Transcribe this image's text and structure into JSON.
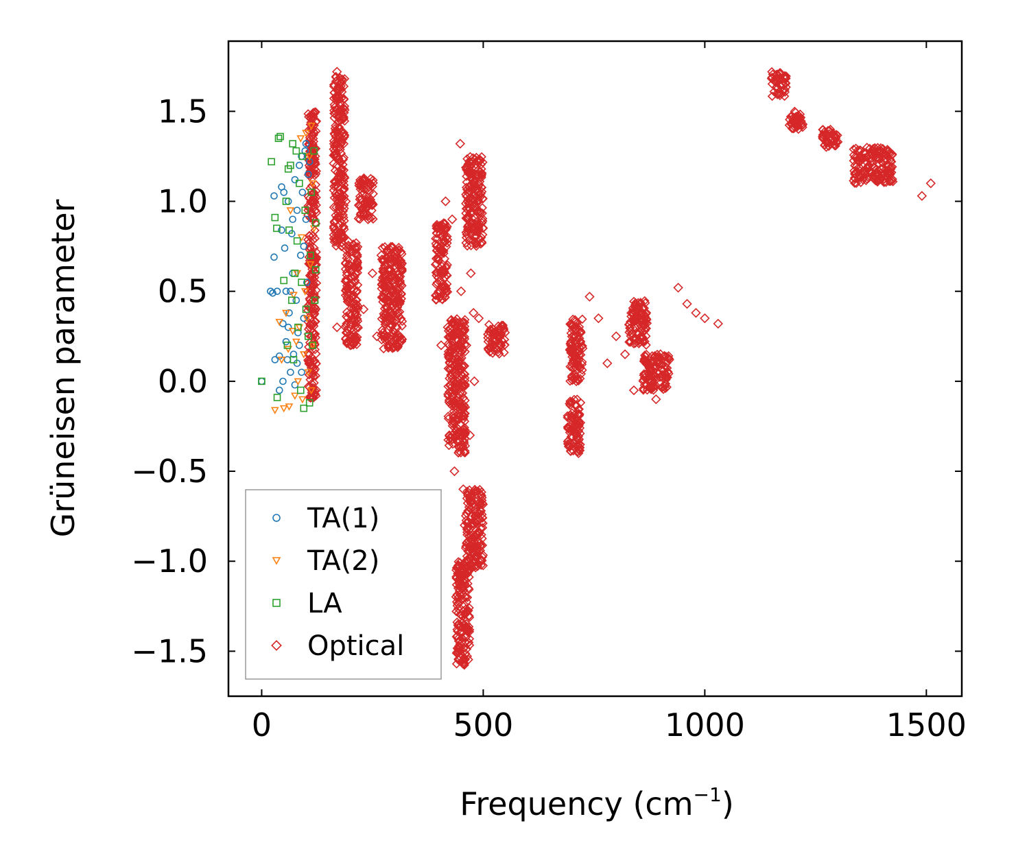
{
  "chart_data": {
    "type": "scatter",
    "title": "",
    "xlabel": "Frequency (cm",
    "xlabel_sup": "−1",
    "xlabel_close": ")",
    "ylabel": "Grüneisen parameter",
    "xlim": [
      -75,
      1580
    ],
    "ylim": [
      -1.75,
      1.89
    ],
    "xticks": [
      {
        "value": 0,
        "label": "0"
      },
      {
        "value": 500,
        "label": "500"
      },
      {
        "value": 1000,
        "label": "1000"
      },
      {
        "value": 1500,
        "label": "1500"
      }
    ],
    "yticks": [
      {
        "value": 1.5,
        "label": "1.5"
      },
      {
        "value": 1.0,
        "label": "1.0"
      },
      {
        "value": 0.5,
        "label": "0.5"
      },
      {
        "value": 0.0,
        "label": "0.0"
      },
      {
        "value": -0.5,
        "label": "−0.5"
      },
      {
        "value": -1.0,
        "label": "−1.0"
      },
      {
        "value": -1.5,
        "label": "−1.5"
      }
    ],
    "legend_position": "lower-left",
    "series": [
      {
        "name": "TA(1)",
        "marker": "circle",
        "color": "#1f77b4",
        "points": [
          [
            0,
            0.0
          ],
          [
            28,
            1.03
          ],
          [
            28,
            0.69
          ],
          [
            30,
            0.12
          ],
          [
            40,
            0.14
          ],
          [
            40,
            -0.05
          ],
          [
            45,
            1.08
          ],
          [
            45,
            0.84
          ],
          [
            48,
            0.0
          ],
          [
            48,
            0.32
          ],
          [
            50,
            1.05
          ],
          [
            52,
            0.74
          ],
          [
            55,
            0.5
          ],
          [
            55,
            0.22
          ],
          [
            58,
            0.12
          ],
          [
            60,
            1.0
          ],
          [
            62,
            0.38
          ],
          [
            65,
            0.05
          ],
          [
            68,
            0.82
          ],
          [
            70,
            0.6
          ],
          [
            72,
            0.15
          ],
          [
            75,
            1.12
          ],
          [
            75,
            -0.02
          ],
          [
            78,
            0.45
          ],
          [
            80,
            0.95
          ],
          [
            82,
            0.27
          ],
          [
            85,
            1.2
          ],
          [
            88,
            0.7
          ],
          [
            90,
            0.05
          ],
          [
            92,
            1.05
          ],
          [
            95,
            0.35
          ],
          [
            98,
            1.28
          ],
          [
            100,
            0.9
          ],
          [
            102,
            0.55
          ],
          [
            105,
            1.15
          ],
          [
            20,
            0.5
          ],
          [
            25,
            0.49
          ],
          [
            35,
            0.5
          ],
          [
            60,
            0.3
          ],
          [
            70,
            0.9
          ],
          [
            80,
            0.1
          ],
          [
            90,
            1.25
          ],
          [
            100,
            1.32
          ],
          [
            108,
            1.22
          ],
          [
            65,
            0.5
          ],
          [
            85,
            0.2
          ],
          [
            95,
            0.75
          ]
        ]
      },
      {
        "name": "TA(2)",
        "marker": "triangle-down",
        "color": "#ff7f0e",
        "points": [
          [
            30,
            -0.16
          ],
          [
            40,
            0.33
          ],
          [
            45,
            0.12
          ],
          [
            50,
            -0.15
          ],
          [
            55,
            0.38
          ],
          [
            60,
            0.18
          ],
          [
            62,
            -0.14
          ],
          [
            65,
            0.95
          ],
          [
            70,
            0.28
          ],
          [
            72,
            0.48
          ],
          [
            75,
            -0.08
          ],
          [
            78,
            0.22
          ],
          [
            80,
            0.6
          ],
          [
            82,
            0.0
          ],
          [
            85,
            0.3
          ],
          [
            88,
            1.35
          ],
          [
            90,
            0.8
          ],
          [
            92,
            -0.1
          ],
          [
            95,
            0.15
          ],
          [
            98,
            0.5
          ],
          [
            100,
            1.38
          ],
          [
            102,
            0.35
          ],
          [
            105,
            0.05
          ],
          [
            108,
            1.25
          ],
          [
            110,
            0.65
          ],
          [
            112,
            1.42
          ],
          [
            115,
            0.2
          ],
          [
            118,
            0.85
          ],
          [
            115,
            1.1
          ],
          [
            112,
            -0.05
          ]
        ]
      },
      {
        "name": "LA",
        "marker": "square",
        "color": "#2ca02c",
        "points": [
          [
            0,
            0.0
          ],
          [
            22,
            1.22
          ],
          [
            35,
            -0.09
          ],
          [
            38,
            1.35
          ],
          [
            42,
            1.36
          ],
          [
            50,
            0.56
          ],
          [
            55,
            1.0
          ],
          [
            58,
            0.2
          ],
          [
            60,
            1.18
          ],
          [
            62,
            0.84
          ],
          [
            65,
            1.2
          ],
          [
            68,
            0.45
          ],
          [
            70,
            1.32
          ],
          [
            72,
            0.12
          ],
          [
            75,
            0.6
          ],
          [
            78,
            1.28
          ],
          [
            80,
            0.78
          ],
          [
            82,
            0.3
          ],
          [
            85,
            1.1
          ],
          [
            88,
            -0.05
          ],
          [
            90,
            0.55
          ],
          [
            92,
            1.25
          ],
          [
            95,
            -0.15
          ],
          [
            98,
            0.95
          ],
          [
            100,
            0.4
          ],
          [
            105,
            0.25
          ],
          [
            108,
            -0.12
          ],
          [
            110,
            0.7
          ],
          [
            112,
            1.05
          ],
          [
            115,
            0.2
          ],
          [
            118,
            1.28
          ],
          [
            120,
            0.45
          ],
          [
            122,
            0.62
          ],
          [
            122,
            0.88
          ],
          [
            30,
            0.91
          ],
          [
            34,
            0.85
          ]
        ]
      },
      {
        "name": "Optical",
        "marker": "diamond",
        "color": "#d62728",
        "points": [
          [
            170,
            1.72
          ],
          [
            170,
            1.2
          ],
          [
            170,
            0.3
          ],
          [
            180,
            0.75
          ],
          [
            190,
            1.0
          ],
          [
            200,
            0.2
          ],
          [
            210,
            0.55
          ],
          [
            220,
            1.1
          ],
          [
            230,
            0.4
          ],
          [
            240,
            0.9
          ],
          [
            250,
            0.6
          ],
          [
            260,
            0.25
          ],
          [
            270,
            0.7
          ],
          [
            280,
            0.5
          ],
          [
            290,
            0.3
          ],
          [
            300,
            0.55
          ],
          [
            395,
            0.85
          ],
          [
            400,
            0.5
          ],
          [
            405,
            0.2
          ],
          [
            410,
            0.6
          ],
          [
            415,
            1.0
          ],
          [
            420,
            0.3
          ],
          [
            425,
            0.1
          ],
          [
            430,
            -0.3
          ],
          [
            430,
            0.9
          ],
          [
            435,
            -0.5
          ],
          [
            440,
            0.0
          ],
          [
            445,
            -1.55
          ],
          [
            448,
            1.32
          ],
          [
            450,
            0.5
          ],
          [
            455,
            -0.6
          ],
          [
            458,
            -0.8
          ],
          [
            460,
            -1.2
          ],
          [
            462,
            0.2
          ],
          [
            465,
            1.05
          ],
          [
            470,
            -0.3
          ],
          [
            472,
            0.6
          ],
          [
            475,
            -0.9
          ],
          [
            478,
            0.38
          ],
          [
            480,
            0.0
          ],
          [
            485,
            -0.95
          ],
          [
            490,
            0.35
          ],
          [
            495,
            -1.0
          ],
          [
            530,
            0.25
          ],
          [
            540,
            0.2
          ],
          [
            700,
            -0.2
          ],
          [
            705,
            0.3
          ],
          [
            710,
            0.0
          ],
          [
            715,
            -0.4
          ],
          [
            740,
            0.47
          ],
          [
            760,
            0.35
          ],
          [
            780,
            0.1
          ],
          [
            800,
            0.25
          ],
          [
            820,
            0.15
          ],
          [
            840,
            -0.05
          ],
          [
            850,
            0.42
          ],
          [
            860,
            0.3
          ],
          [
            870,
            0.1
          ],
          [
            880,
            0.0
          ],
          [
            890,
            -0.1
          ],
          [
            900,
            0.15
          ],
          [
            920,
            0.12
          ],
          [
            940,
            0.52
          ],
          [
            960,
            0.43
          ],
          [
            980,
            0.38
          ],
          [
            1000,
            0.35
          ],
          [
            1030,
            0.32
          ],
          [
            1160,
            1.68
          ],
          [
            1180,
            1.62
          ],
          [
            1200,
            1.45
          ],
          [
            1280,
            1.35
          ],
          [
            1300,
            1.33
          ],
          [
            1350,
            1.22
          ],
          [
            1380,
            1.28
          ],
          [
            1400,
            1.18
          ],
          [
            1420,
            1.12
          ],
          [
            1490,
            1.03
          ],
          [
            1510,
            1.1
          ]
        ]
      }
    ],
    "optical_clusters": [
      {
        "x": [
          104,
          124
        ],
        "y": [
          -0.1,
          1.5
        ]
      },
      {
        "x": [
          162,
          188
        ],
        "y": [
          0.75,
          1.72
        ]
      },
      {
        "x": [
          188,
          218
        ],
        "y": [
          0.2,
          0.78
        ]
      },
      {
        "x": [
          218,
          252
        ],
        "y": [
          0.9,
          1.15
        ]
      },
      {
        "x": [
          270,
          318
        ],
        "y": [
          0.18,
          0.75
        ]
      },
      {
        "x": [
          392,
          420
        ],
        "y": [
          0.45,
          0.88
        ]
      },
      {
        "x": [
          420,
          460
        ],
        "y": [
          -0.4,
          0.35
        ]
      },
      {
        "x": [
          438,
          470
        ],
        "y": [
          -1.58,
          -1.0
        ]
      },
      {
        "x": [
          460,
          500
        ],
        "y": [
          -1.05,
          -0.6
        ]
      },
      {
        "x": [
          460,
          500
        ],
        "y": [
          0.75,
          1.25
        ]
      },
      {
        "x": [
          510,
          550
        ],
        "y": [
          0.15,
          0.32
        ]
      },
      {
        "x": [
          690,
          720
        ],
        "y": [
          -0.4,
          -0.1
        ]
      },
      {
        "x": [
          695,
          725
        ],
        "y": [
          0.0,
          0.35
        ]
      },
      {
        "x": [
          828,
          870
        ],
        "y": [
          0.2,
          0.45
        ]
      },
      {
        "x": [
          860,
          920
        ],
        "y": [
          -0.05,
          0.15
        ]
      },
      {
        "x": [
          1150,
          1185
        ],
        "y": [
          1.58,
          1.72
        ]
      },
      {
        "x": [
          1190,
          1222
        ],
        "y": [
          1.4,
          1.5
        ]
      },
      {
        "x": [
          1265,
          1300
        ],
        "y": [
          1.3,
          1.4
        ]
      },
      {
        "x": [
          1335,
          1425
        ],
        "y": [
          1.1,
          1.3
        ]
      }
    ]
  }
}
